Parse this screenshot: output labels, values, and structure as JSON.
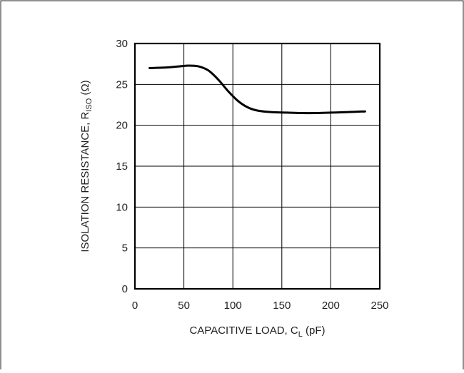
{
  "chart_data": {
    "type": "line",
    "xlabel": {
      "main": "CAPACITIVE LOAD, C",
      "sub": "L",
      "unit": " (pF)"
    },
    "ylabel": {
      "main": "ISOLATION RESISTANCE, R",
      "sub": "ISO",
      "unit": " (Ω)"
    },
    "xlim": [
      0,
      250
    ],
    "ylim": [
      0,
      30
    ],
    "xticks": [
      "0",
      "50",
      "100",
      "150",
      "200",
      "250"
    ],
    "yticks": [
      "0",
      "5",
      "10",
      "15",
      "20",
      "25",
      "30"
    ],
    "grid": true,
    "series": [
      {
        "color": "#000000",
        "x": [
          15,
          30,
          45,
          55,
          65,
          75,
          85,
          95,
          105,
          115,
          125,
          140,
          155,
          170,
          185,
          200,
          215,
          225,
          235
        ],
        "y": [
          27.0,
          27.05,
          27.2,
          27.3,
          27.2,
          26.7,
          25.6,
          24.2,
          23.0,
          22.2,
          21.8,
          21.6,
          21.55,
          21.5,
          21.5,
          21.55,
          21.6,
          21.65,
          21.7
        ]
      }
    ]
  }
}
